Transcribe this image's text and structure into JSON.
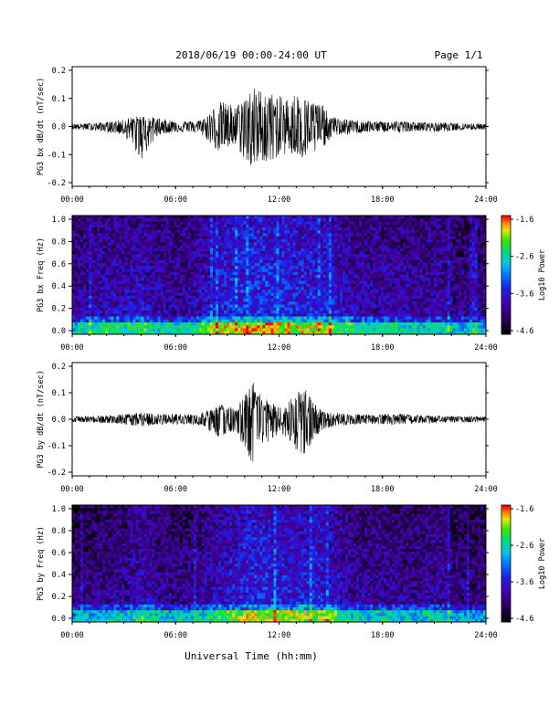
{
  "header": {
    "title": "2018/06/19  00:00-24:00 UT",
    "page": "Page 1/1"
  },
  "footer": {
    "xlabel": "Universal Time (hh:mm)"
  },
  "chart_data": [
    {
      "type": "line",
      "ylabel": "PG3 bx dB/dt (nT/sec)",
      "ylim": [
        -0.2,
        0.2
      ],
      "yticks": [
        "0.2",
        "0.1",
        "0.0",
        "-0.1",
        "-0.2"
      ],
      "xticks": [
        "00:00",
        "06:00",
        "12:00",
        "18:00",
        "24:00"
      ],
      "x": [
        0,
        1,
        2,
        3,
        4,
        5,
        6,
        7,
        7.5,
        8,
        8.5,
        9,
        9.5,
        10,
        10.5,
        11,
        11.5,
        12,
        12.5,
        13,
        13.5,
        14,
        14.5,
        15,
        15.5,
        16,
        17,
        18,
        19,
        20,
        21,
        22,
        23,
        24
      ],
      "y_upper": [
        0.01,
        0.012,
        0.015,
        0.025,
        0.04,
        0.03,
        0.02,
        0.02,
        0.025,
        0.05,
        0.09,
        0.085,
        0.07,
        0.11,
        0.14,
        0.13,
        0.12,
        0.11,
        0.1,
        0.12,
        0.1,
        0.09,
        0.08,
        0.035,
        0.03,
        0.025,
        0.02,
        0.018,
        0.02,
        0.015,
        0.015,
        0.012,
        0.012,
        0.01
      ],
      "y_lower": [
        -0.01,
        -0.012,
        -0.02,
        -0.03,
        -0.12,
        -0.03,
        -0.02,
        -0.02,
        -0.03,
        -0.06,
        -0.09,
        -0.08,
        -0.07,
        -0.12,
        -0.16,
        -0.12,
        -0.14,
        -0.1,
        -0.1,
        -0.11,
        -0.12,
        -0.1,
        -0.08,
        -0.04,
        -0.03,
        -0.03,
        -0.02,
        -0.02,
        -0.02,
        -0.015,
        -0.02,
        -0.015,
        -0.012,
        -0.01
      ]
    },
    {
      "type": "heatmap",
      "ylabel": "PG3 bx Freq (Hz)",
      "ylim": [
        0,
        1
      ],
      "yticks": [
        "1.0",
        "0.8",
        "0.6",
        "0.4",
        "0.2",
        "0.0"
      ],
      "xticks": [
        "00:00",
        "06:00",
        "12:00",
        "18:00",
        "24:00"
      ],
      "colorbar": {
        "label": "Log10 Power",
        "ticks": [
          "-1.6",
          "-2.6",
          "-3.6",
          "-4.6"
        ],
        "range": [
          -4.6,
          -1.6
        ]
      },
      "activity_by_hour": [
        0.42,
        0.5,
        0.55,
        0.52,
        0.58,
        0.5,
        0.45,
        0.52,
        0.62,
        0.7,
        0.74,
        0.76,
        0.72,
        0.7,
        0.68,
        0.66,
        0.55,
        0.5,
        0.5,
        0.48,
        0.45,
        0.5,
        0.42,
        0.4,
        0.4
      ]
    },
    {
      "type": "line",
      "ylabel": "PG3 by dB/dt (nT/sec)",
      "ylim": [
        -0.2,
        0.2
      ],
      "yticks": [
        "0.2",
        "0.1",
        "0.0",
        "-0.1",
        "-0.2"
      ],
      "xticks": [
        "00:00",
        "06:00",
        "12:00",
        "18:00",
        "24:00"
      ],
      "x": [
        0,
        1,
        2,
        3,
        4,
        5,
        6,
        7,
        7.5,
        8,
        8.5,
        9,
        9.5,
        10,
        10.5,
        11,
        11.5,
        12,
        12.5,
        13,
        13.5,
        14,
        14.5,
        15,
        15.5,
        16,
        17,
        18,
        19,
        20,
        21,
        22,
        23,
        24
      ],
      "y_upper": [
        0.01,
        0.012,
        0.015,
        0.02,
        0.025,
        0.02,
        0.02,
        0.02,
        0.025,
        0.035,
        0.06,
        0.05,
        0.04,
        0.09,
        0.14,
        0.08,
        0.07,
        0.05,
        0.06,
        0.1,
        0.12,
        0.07,
        0.03,
        0.025,
        0.025,
        0.02,
        0.018,
        0.02,
        0.02,
        0.015,
        0.015,
        0.012,
        0.012,
        0.01
      ],
      "y_lower": [
        -0.01,
        -0.012,
        -0.015,
        -0.02,
        -0.03,
        -0.02,
        -0.02,
        -0.02,
        -0.03,
        -0.05,
        -0.07,
        -0.06,
        -0.05,
        -0.12,
        -0.2,
        -0.1,
        -0.09,
        -0.06,
        -0.07,
        -0.12,
        -0.14,
        -0.08,
        -0.04,
        -0.03,
        -0.03,
        -0.02,
        -0.02,
        -0.02,
        -0.02,
        -0.015,
        -0.015,
        -0.012,
        -0.012,
        -0.01
      ]
    },
    {
      "type": "heatmap",
      "ylabel": "PG3 by Freq (Hz)",
      "ylim": [
        0,
        1
      ],
      "yticks": [
        "1.0",
        "0.8",
        "0.6",
        "0.4",
        "0.2",
        "0.0"
      ],
      "xticks": [
        "00:00",
        "06:00",
        "12:00",
        "18:00",
        "24:00"
      ],
      "colorbar": {
        "label": "Log10 Power",
        "ticks": [
          "-1.6",
          "-2.6",
          "-3.6",
          "-4.6"
        ],
        "range": [
          -4.6,
          -1.6
        ]
      },
      "activity_by_hour": [
        0.35,
        0.38,
        0.42,
        0.45,
        0.55,
        0.45,
        0.4,
        0.42,
        0.52,
        0.62,
        0.68,
        0.72,
        0.66,
        0.66,
        0.68,
        0.62,
        0.48,
        0.45,
        0.46,
        0.44,
        0.42,
        0.48,
        0.4,
        0.36,
        0.36
      ]
    }
  ],
  "colors": {
    "axis": "#000000",
    "trace": "#000000"
  }
}
